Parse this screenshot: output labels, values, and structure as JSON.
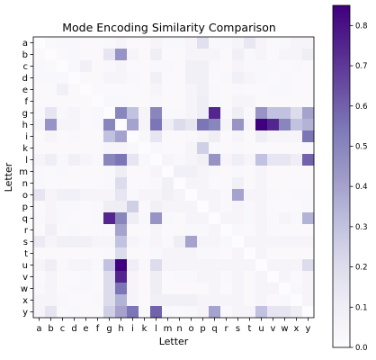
{
  "chart_data": {
    "type": "heatmap",
    "title": "Mode Encoding Similarity Comparison",
    "xlabel": "Letter",
    "ylabel": "Letter",
    "x_categories": [
      "a",
      "b",
      "c",
      "d",
      "e",
      "f",
      "g",
      "h",
      "i",
      "k",
      "l",
      "m",
      "n",
      "o",
      "p",
      "q",
      "r",
      "s",
      "t",
      "u",
      "v",
      "w",
      "x",
      "y"
    ],
    "y_categories": [
      "a",
      "b",
      "c",
      "d",
      "e",
      "f",
      "g",
      "h",
      "i",
      "k",
      "l",
      "m",
      "n",
      "o",
      "p",
      "q",
      "r",
      "s",
      "t",
      "u",
      "v",
      "w",
      "x",
      "y"
    ],
    "vmin": 0,
    "vmax": 0.85,
    "colorbar_ticks": [
      "0.0",
      "0.1",
      "0.2",
      "0.3",
      "0.4",
      "0.5",
      "0.6",
      "0.7",
      "0.8"
    ],
    "colormap": "Purples",
    "values": [
      [
        0.0,
        0.02,
        0.03,
        0.03,
        0.02,
        0.02,
        0.03,
        0.05,
        0.02,
        0.02,
        0.05,
        0.03,
        0.03,
        0.05,
        0.18,
        0.03,
        0.03,
        0.05,
        0.14,
        0.05,
        0.02,
        0.03,
        0.05,
        0.05
      ],
      [
        0.02,
        0.0,
        0.02,
        0.03,
        0.02,
        0.02,
        0.15,
        0.45,
        0.05,
        0.02,
        0.1,
        0.02,
        0.02,
        0.05,
        0.05,
        0.05,
        0.02,
        0.08,
        0.03,
        0.05,
        0.02,
        0.05,
        0.05,
        0.1
      ],
      [
        0.03,
        0.02,
        0.0,
        0.03,
        0.08,
        0.02,
        0.03,
        0.05,
        0.02,
        0.02,
        0.03,
        0.03,
        0.02,
        0.08,
        0.08,
        0.03,
        0.02,
        0.05,
        0.03,
        0.03,
        0.03,
        0.02,
        0.03,
        0.02
      ],
      [
        0.03,
        0.03,
        0.03,
        0.0,
        0.02,
        0.02,
        0.05,
        0.05,
        0.03,
        0.02,
        0.08,
        0.02,
        0.02,
        0.08,
        0.08,
        0.02,
        0.03,
        0.08,
        0.05,
        0.03,
        0.02,
        0.03,
        0.02,
        0.02
      ],
      [
        0.02,
        0.02,
        0.08,
        0.02,
        0.0,
        0.02,
        0.02,
        0.02,
        0.02,
        0.02,
        0.05,
        0.02,
        0.02,
        0.05,
        0.08,
        0.03,
        0.02,
        0.03,
        0.02,
        0.02,
        0.03,
        0.03,
        0.02,
        0.02
      ],
      [
        0.02,
        0.02,
        0.02,
        0.02,
        0.02,
        0.0,
        0.03,
        0.03,
        0.02,
        0.02,
        0.03,
        0.02,
        0.02,
        0.05,
        0.1,
        0.03,
        0.02,
        0.05,
        0.05,
        0.02,
        0.02,
        0.02,
        0.02,
        0.02
      ],
      [
        0.03,
        0.15,
        0.03,
        0.05,
        0.02,
        0.03,
        0.0,
        0.5,
        0.3,
        0.05,
        0.5,
        0.03,
        0.03,
        0.05,
        0.1,
        0.75,
        0.03,
        0.1,
        0.03,
        0.45,
        0.3,
        0.3,
        0.2,
        0.4
      ],
      [
        0.05,
        0.45,
        0.05,
        0.05,
        0.02,
        0.03,
        0.5,
        0.0,
        0.4,
        0.05,
        0.55,
        0.1,
        0.2,
        0.15,
        0.55,
        0.5,
        0.05,
        0.45,
        0.05,
        0.85,
        0.75,
        0.5,
        0.3,
        0.35
      ],
      [
        0.02,
        0.05,
        0.02,
        0.03,
        0.02,
        0.02,
        0.3,
        0.4,
        0.0,
        0.03,
        0.15,
        0.02,
        0.02,
        0.03,
        0.05,
        0.1,
        0.02,
        0.05,
        0.02,
        0.1,
        0.05,
        0.05,
        0.05,
        0.55
      ],
      [
        0.02,
        0.02,
        0.02,
        0.02,
        0.02,
        0.02,
        0.05,
        0.05,
        0.03,
        0.0,
        0.03,
        0.02,
        0.02,
        0.05,
        0.25,
        0.03,
        0.02,
        0.03,
        0.02,
        0.02,
        0.02,
        0.02,
        0.02,
        0.03
      ],
      [
        0.05,
        0.1,
        0.03,
        0.08,
        0.05,
        0.03,
        0.5,
        0.55,
        0.15,
        0.03,
        0.0,
        0.05,
        0.03,
        0.05,
        0.08,
        0.45,
        0.05,
        0.1,
        0.05,
        0.3,
        0.15,
        0.15,
        0.1,
        0.6
      ],
      [
        0.03,
        0.02,
        0.03,
        0.02,
        0.02,
        0.02,
        0.03,
        0.1,
        0.02,
        0.02,
        0.05,
        0.0,
        0.08,
        0.08,
        0.05,
        0.03,
        0.02,
        0.03,
        0.02,
        0.05,
        0.02,
        0.02,
        0.02,
        0.02
      ],
      [
        0.03,
        0.02,
        0.02,
        0.02,
        0.02,
        0.02,
        0.03,
        0.2,
        0.02,
        0.02,
        0.03,
        0.08,
        0.0,
        0.05,
        0.05,
        0.02,
        0.02,
        0.08,
        0.02,
        0.05,
        0.02,
        0.02,
        0.02,
        0.02
      ],
      [
        0.15,
        0.05,
        0.08,
        0.08,
        0.05,
        0.05,
        0.05,
        0.15,
        0.03,
        0.05,
        0.05,
        0.08,
        0.05,
        0.0,
        0.05,
        0.05,
        0.03,
        0.4,
        0.05,
        0.05,
        0.03,
        0.02,
        0.03,
        0.03
      ],
      [
        0.02,
        0.05,
        0.03,
        0.03,
        0.02,
        0.03,
        0.1,
        0.1,
        0.25,
        0.02,
        0.08,
        0.05,
        0.05,
        0.05,
        0.0,
        0.05,
        0.03,
        0.05,
        0.03,
        0.05,
        0.02,
        0.02,
        0.02,
        0.03
      ],
      [
        0.03,
        0.05,
        0.03,
        0.02,
        0.02,
        0.03,
        0.75,
        0.5,
        0.1,
        0.03,
        0.45,
        0.03,
        0.02,
        0.05,
        0.05,
        0.0,
        0.05,
        0.05,
        0.03,
        0.05,
        0.03,
        0.05,
        0.03,
        0.35
      ],
      [
        0.02,
        0.08,
        0.02,
        0.03,
        0.02,
        0.02,
        0.03,
        0.4,
        0.02,
        0.02,
        0.05,
        0.02,
        0.02,
        0.03,
        0.03,
        0.05,
        0.0,
        0.03,
        0.02,
        0.05,
        0.03,
        0.02,
        0.02,
        0.02
      ],
      [
        0.12,
        0.05,
        0.08,
        0.08,
        0.08,
        0.05,
        0.05,
        0.3,
        0.05,
        0.03,
        0.05,
        0.03,
        0.1,
        0.4,
        0.05,
        0.05,
        0.03,
        0.0,
        0.05,
        0.05,
        0.05,
        0.05,
        0.05,
        0.05
      ],
      [
        0.02,
        0.02,
        0.02,
        0.02,
        0.02,
        0.02,
        0.03,
        0.2,
        0.02,
        0.02,
        0.03,
        0.05,
        0.05,
        0.05,
        0.03,
        0.03,
        0.02,
        0.05,
        0.0,
        0.05,
        0.02,
        0.02,
        0.02,
        0.02
      ],
      [
        0.05,
        0.1,
        0.03,
        0.05,
        0.05,
        0.03,
        0.3,
        0.85,
        0.1,
        0.03,
        0.2,
        0.05,
        0.05,
        0.05,
        0.05,
        0.05,
        0.05,
        0.05,
        0.05,
        0.0,
        0.05,
        0.05,
        0.05,
        0.2
      ],
      [
        0.02,
        0.05,
        0.02,
        0.02,
        0.03,
        0.02,
        0.2,
        0.75,
        0.05,
        0.02,
        0.1,
        0.02,
        0.03,
        0.03,
        0.05,
        0.05,
        0.03,
        0.05,
        0.02,
        0.05,
        0.0,
        0.05,
        0.02,
        0.05
      ],
      [
        0.03,
        0.05,
        0.02,
        0.03,
        0.03,
        0.02,
        0.2,
        0.55,
        0.05,
        0.02,
        0.1,
        0.02,
        0.02,
        0.02,
        0.02,
        0.05,
        0.02,
        0.05,
        0.02,
        0.05,
        0.05,
        0.0,
        0.03,
        0.05
      ],
      [
        0.05,
        0.05,
        0.03,
        0.02,
        0.02,
        0.03,
        0.2,
        0.35,
        0.05,
        0.02,
        0.08,
        0.08,
        0.08,
        0.08,
        0.05,
        0.05,
        0.05,
        0.05,
        0.02,
        0.05,
        0.02,
        0.03,
        0.0,
        0.05
      ],
      [
        0.05,
        0.15,
        0.02,
        0.03,
        0.02,
        0.02,
        0.25,
        0.4,
        0.55,
        0.03,
        0.6,
        0.03,
        0.02,
        0.03,
        0.05,
        0.4,
        0.02,
        0.05,
        0.05,
        0.3,
        0.15,
        0.15,
        0.1,
        0.0
      ]
    ]
  }
}
